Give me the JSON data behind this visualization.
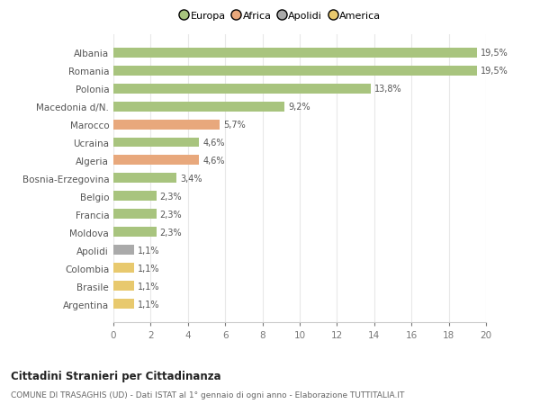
{
  "categories": [
    "Albania",
    "Romania",
    "Polonia",
    "Macedonia d/N.",
    "Marocco",
    "Ucraina",
    "Algeria",
    "Bosnia-Erzegovina",
    "Belgio",
    "Francia",
    "Moldova",
    "Apolidi",
    "Colombia",
    "Brasile",
    "Argentina"
  ],
  "values": [
    19.5,
    19.5,
    13.8,
    9.2,
    5.7,
    4.6,
    4.6,
    3.4,
    2.3,
    2.3,
    2.3,
    1.1,
    1.1,
    1.1,
    1.1
  ],
  "labels": [
    "19,5%",
    "19,5%",
    "13,8%",
    "9,2%",
    "5,7%",
    "4,6%",
    "4,6%",
    "3,4%",
    "2,3%",
    "2,3%",
    "2,3%",
    "1,1%",
    "1,1%",
    "1,1%",
    "1,1%"
  ],
  "colors": [
    "#a8c47e",
    "#a8c47e",
    "#a8c47e",
    "#a8c47e",
    "#e8a87c",
    "#a8c47e",
    "#e8a87c",
    "#a8c47e",
    "#a8c47e",
    "#a8c47e",
    "#a8c47e",
    "#aaaaaa",
    "#e8c96e",
    "#e8c96e",
    "#e8c96e"
  ],
  "legend_labels": [
    "Europa",
    "Africa",
    "Apolidi",
    "America"
  ],
  "legend_colors": [
    "#a8c47e",
    "#e8a87c",
    "#aaaaaa",
    "#e8c96e"
  ],
  "title": "Cittadini Stranieri per Cittadinanza",
  "subtitle": "COMUNE DI TRASAGHIS (UD) - Dati ISTAT al 1° gennaio di ogni anno - Elaborazione TUTTITALIA.IT",
  "xlim": [
    0,
    20
  ],
  "xticks": [
    0,
    2,
    4,
    6,
    8,
    10,
    12,
    14,
    16,
    18,
    20
  ],
  "background_color": "#ffffff",
  "grid_color": "#e8e8e8"
}
